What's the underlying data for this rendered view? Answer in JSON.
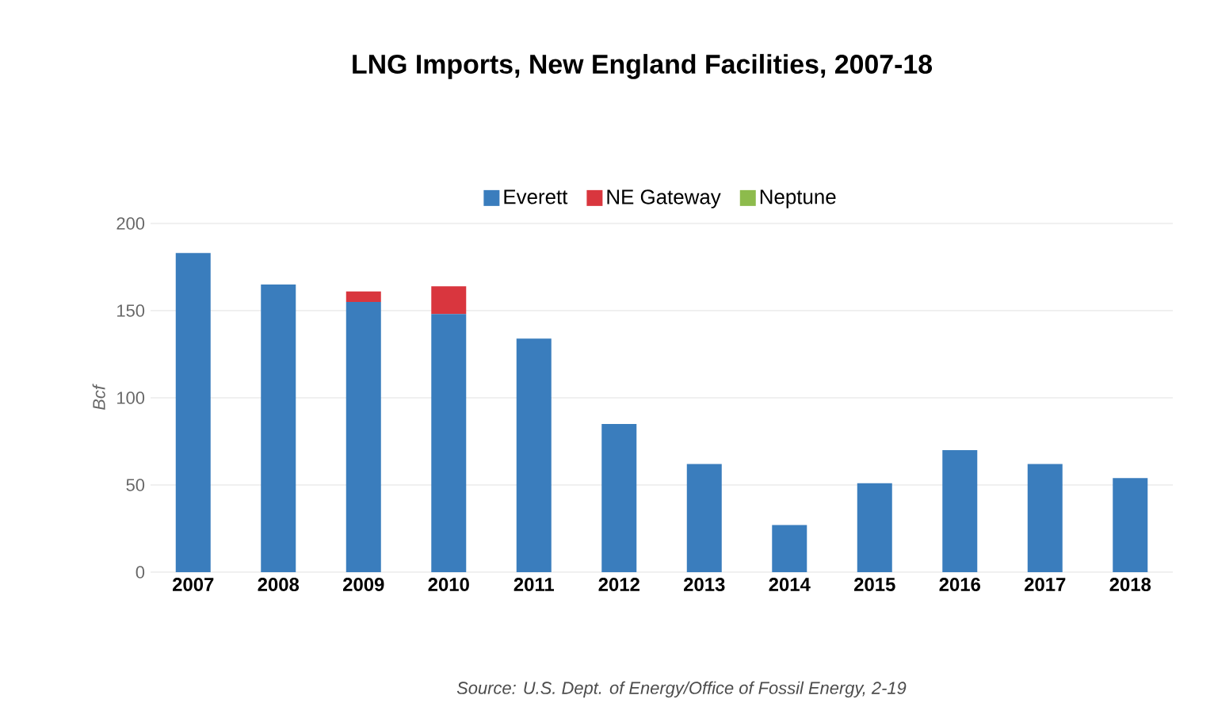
{
  "chart_data": {
    "type": "bar",
    "title": "LNG Imports, New England Facilities, 2007-18",
    "ylabel": "Bcf",
    "categories": [
      "2007",
      "2008",
      "2009",
      "2010",
      "2011",
      "2012",
      "2013",
      "2014",
      "2015",
      "2016",
      "2017",
      "2018"
    ],
    "series": [
      {
        "name": "Everett",
        "color": "#3a7dbd",
        "values": [
          183,
          165,
          155,
          148,
          134,
          85,
          62,
          27,
          51,
          70,
          62,
          54
        ]
      },
      {
        "name": "NE Gateway",
        "color": "#d9363e",
        "values": [
          0,
          0,
          6,
          16,
          0,
          0,
          0,
          0,
          0,
          0,
          0,
          0
        ]
      },
      {
        "name": "Neptune",
        "color": "#8dbb4c",
        "values": [
          0,
          0,
          0,
          0,
          0,
          0,
          0,
          0,
          0,
          0,
          0,
          0
        ]
      }
    ],
    "stacked": true,
    "ylim": [
      0,
      200
    ],
    "yticks": [
      0,
      50,
      100,
      150,
      200
    ],
    "grid": "y",
    "legend": "top",
    "annotations": [
      "Source: U.S. Dept. of Energy/Office of Fossil Energy, 2-19"
    ]
  }
}
